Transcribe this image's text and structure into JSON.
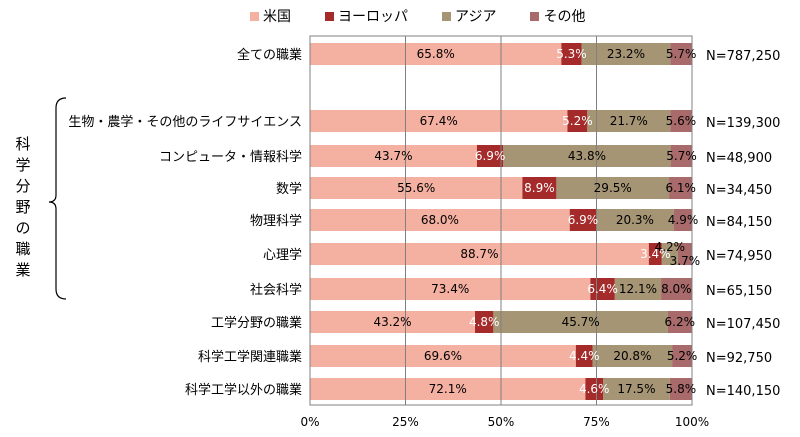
{
  "chart_data": {
    "type": "bar",
    "orientation": "horizontal",
    "stacked": true,
    "categories": [
      "全ての職業",
      "生物・農学・その他のライフサイエンス",
      "コンピュータ・情報科学",
      "数学",
      "物理科学",
      "心理学",
      "社会科学",
      "工学分野の職業",
      "科学工学関連職業",
      "科学工学以外の職業"
    ],
    "n_labels": [
      "N=787,250",
      "N=139,300",
      "N=48,900",
      "N=34,450",
      "N=84,150",
      "N=74,950",
      "N=65,150",
      "N=107,450",
      "N=92,750",
      "N=140,150"
    ],
    "series": [
      {
        "name": "米国",
        "color": "#f4b0a1",
        "values": [
          65.8,
          67.4,
          43.7,
          55.6,
          68.0,
          88.7,
          73.4,
          43.2,
          69.6,
          72.1
        ],
        "labels": [
          "65.8%",
          "67.4%",
          "43.7%",
          "55.6%",
          "68.0%",
          "88.7%",
          "73.4%",
          "43.2%",
          "69.6%",
          "72.1%"
        ]
      },
      {
        "name": "ヨーロッパ",
        "color": "#a52a2a",
        "values": [
          5.3,
          5.2,
          6.9,
          8.9,
          6.9,
          3.4,
          6.4,
          4.8,
          4.4,
          4.6
        ],
        "labels": [
          "5.3%",
          "5.2%",
          "6.9%",
          "8.9%",
          "6.9%",
          "3.4%",
          "6.4%",
          "4.8%",
          "4.4%",
          "4.6%"
        ]
      },
      {
        "name": "アジア",
        "color": "#a59574",
        "values": [
          23.2,
          21.7,
          43.8,
          29.5,
          20.3,
          4.2,
          12.1,
          45.7,
          20.8,
          17.5
        ],
        "labels": [
          "23.2%",
          "21.7%",
          "43.8%",
          "29.5%",
          "20.3%",
          "4.2%",
          "12.1%",
          "45.7%",
          "20.8%",
          "17.5%"
        ]
      },
      {
        "name": "その他",
        "color": "#a86a6a",
        "values": [
          5.7,
          5.6,
          5.7,
          6.1,
          4.9,
          3.7,
          8.0,
          6.2,
          5.2,
          5.8
        ],
        "labels": [
          "5.7%",
          "5.6%",
          "5.7%",
          "6.1%",
          "4.9%",
          "3.7%",
          "8.0%",
          "6.2%",
          "5.2%",
          "5.8%"
        ]
      }
    ],
    "xlim": [
      0,
      100
    ],
    "xticks": [
      "0%",
      "25%",
      "50%",
      "75%",
      "100%"
    ],
    "grid": true,
    "legend_position": "top",
    "group_label": "科学分野の職業"
  }
}
